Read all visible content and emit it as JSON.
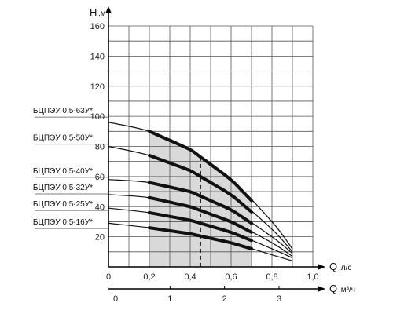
{
  "chart_data": {
    "type": "line",
    "y_axis": {
      "label_main": "H",
      "label_unit": ",м",
      "ticks": [
        20,
        40,
        60,
        80,
        100,
        120,
        140,
        160
      ],
      "tick_labels": [
        "20",
        "40",
        "60",
        "80",
        "100",
        "120",
        "140",
        "160"
      ],
      "range": [
        0,
        160
      ]
    },
    "x_axis": {
      "label_main": "Q",
      "label_unit": ",л/с",
      "ticks": [
        0,
        0.2,
        0.4,
        0.6,
        0.8,
        1.0
      ],
      "tick_labels": [
        "0",
        "0,2",
        "0,4",
        "0,6",
        "0,8",
        "1,0"
      ],
      "range": [
        0,
        1.0
      ]
    },
    "x2_axis": {
      "label_main": "Q",
      "label_unit": ",м³/ч",
      "ticks": [
        0,
        1,
        2,
        3
      ],
      "tick_labels": [
        "0",
        "1",
        "2",
        "3"
      ],
      "range": [
        0,
        3.6
      ]
    },
    "grid": true,
    "working_range": [
      0.2,
      0.7
    ],
    "nominal_q": 0.45,
    "series": [
      {
        "name": "БЦПЭУ 0,5-63У*",
        "label_y": 100,
        "values": [
          {
            "x": 0,
            "y": 96
          },
          {
            "x": 0.2,
            "y": 90
          },
          {
            "x": 0.4,
            "y": 78
          },
          {
            "x": 0.6,
            "y": 58
          },
          {
            "x": 0.8,
            "y": 30
          },
          {
            "x": 0.9,
            "y": 12
          }
        ]
      },
      {
        "name": "БЦПЭУ 0,5-50У*",
        "label_y": 82,
        "values": [
          {
            "x": 0,
            "y": 80
          },
          {
            "x": 0.2,
            "y": 74
          },
          {
            "x": 0.4,
            "y": 64
          },
          {
            "x": 0.6,
            "y": 48
          },
          {
            "x": 0.8,
            "y": 25
          },
          {
            "x": 0.9,
            "y": 10
          }
        ]
      },
      {
        "name": "БЦПЭУ 0,5-40У*",
        "label_y": 60,
        "values": [
          {
            "x": 0,
            "y": 58
          },
          {
            "x": 0.2,
            "y": 56
          },
          {
            "x": 0.4,
            "y": 50
          },
          {
            "x": 0.6,
            "y": 38
          },
          {
            "x": 0.8,
            "y": 20
          },
          {
            "x": 0.9,
            "y": 9
          }
        ]
      },
      {
        "name": "БЦПЭУ 0,5-32У*",
        "label_y": 49,
        "values": [
          {
            "x": 0,
            "y": 48
          },
          {
            "x": 0.2,
            "y": 46
          },
          {
            "x": 0.4,
            "y": 40
          },
          {
            "x": 0.6,
            "y": 30
          },
          {
            "x": 0.8,
            "y": 16
          },
          {
            "x": 0.9,
            "y": 7
          }
        ]
      },
      {
        "name": "БЦПЭУ 0,5-25У*",
        "label_y": 38,
        "values": [
          {
            "x": 0,
            "y": 39
          },
          {
            "x": 0.2,
            "y": 36
          },
          {
            "x": 0.4,
            "y": 31
          },
          {
            "x": 0.6,
            "y": 23
          },
          {
            "x": 0.8,
            "y": 12
          },
          {
            "x": 0.9,
            "y": 6
          }
        ]
      },
      {
        "name": "БЦПЭУ 0,5-16У*",
        "label_y": 26,
        "values": [
          {
            "x": 0,
            "y": 29
          },
          {
            "x": 0.2,
            "y": 26
          },
          {
            "x": 0.4,
            "y": 22
          },
          {
            "x": 0.6,
            "y": 16
          },
          {
            "x": 0.8,
            "y": 8
          },
          {
            "x": 0.9,
            "y": 4
          }
        ]
      }
    ],
    "colors": {
      "line": "#111111",
      "grid": "#555555",
      "shade": "#d9d9d9",
      "background": "#ffffff"
    }
  }
}
